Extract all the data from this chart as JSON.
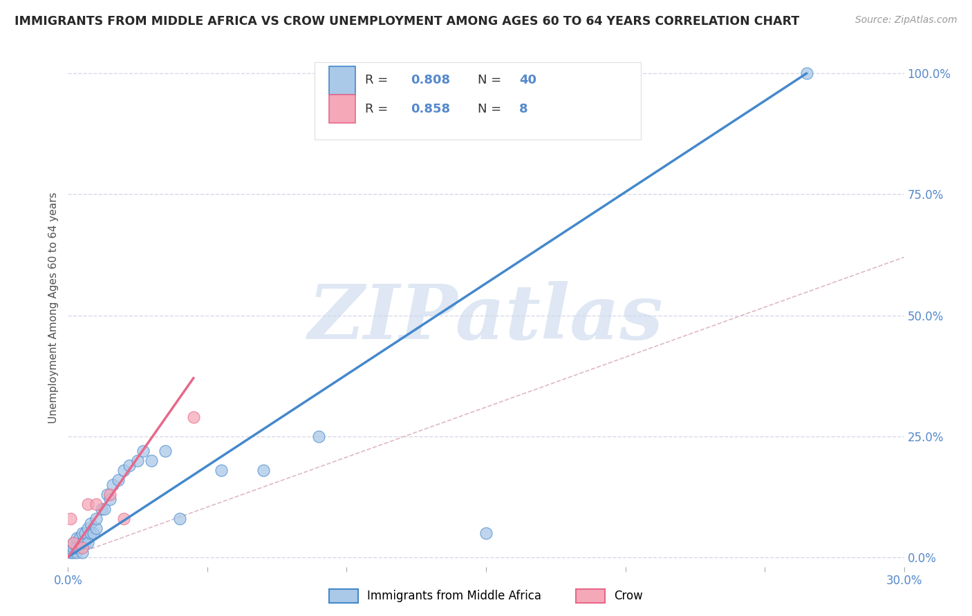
{
  "title": "IMMIGRANTS FROM MIDDLE AFRICA VS CROW UNEMPLOYMENT AMONG AGES 60 TO 64 YEARS CORRELATION CHART",
  "source": "Source: ZipAtlas.com",
  "ylabel": "Unemployment Among Ages 60 to 64 years",
  "watermark": "ZIPatlas",
  "xlim": [
    0.0,
    0.3
  ],
  "ylim": [
    -0.02,
    1.05
  ],
  "blue_scatter_x": [
    0.001,
    0.001,
    0.002,
    0.002,
    0.002,
    0.003,
    0.003,
    0.003,
    0.004,
    0.004,
    0.005,
    0.005,
    0.005,
    0.006,
    0.006,
    0.007,
    0.007,
    0.008,
    0.008,
    0.009,
    0.01,
    0.01,
    0.012,
    0.013,
    0.014,
    0.015,
    0.016,
    0.018,
    0.02,
    0.022,
    0.025,
    0.027,
    0.03,
    0.035,
    0.04,
    0.055,
    0.07,
    0.09,
    0.15,
    0.265
  ],
  "blue_scatter_y": [
    0.01,
    0.02,
    0.01,
    0.02,
    0.03,
    0.01,
    0.02,
    0.04,
    0.02,
    0.04,
    0.01,
    0.03,
    0.05,
    0.03,
    0.05,
    0.03,
    0.06,
    0.05,
    0.07,
    0.05,
    0.06,
    0.08,
    0.1,
    0.1,
    0.13,
    0.12,
    0.15,
    0.16,
    0.18,
    0.19,
    0.2,
    0.22,
    0.2,
    0.22,
    0.08,
    0.18,
    0.18,
    0.25,
    0.05,
    1.0
  ],
  "pink_scatter_x": [
    0.001,
    0.002,
    0.005,
    0.007,
    0.01,
    0.015,
    0.02,
    0.045
  ],
  "pink_scatter_y": [
    0.08,
    0.03,
    0.02,
    0.11,
    0.11,
    0.13,
    0.08,
    0.29
  ],
  "blue_line_x": [
    0.0,
    0.265
  ],
  "blue_line_y": [
    0.0,
    1.0
  ],
  "pink_line_x": [
    0.0,
    0.045
  ],
  "pink_line_y": [
    0.0,
    0.37
  ],
  "ref_line_x": [
    0.0,
    0.3
  ],
  "ref_line_y": [
    0.0,
    0.62
  ],
  "scatter_color_blue": "#aac8e8",
  "scatter_color_pink": "#f4a8b8",
  "line_color_blue": "#4488cc",
  "line_color_pink": "#e8688a",
  "ref_line_color": "#e0b8c0",
  "background_color": "#ffffff",
  "grid_color": "#d8d8e8",
  "title_color": "#282828",
  "axis_label_color": "#505050",
  "tick_color": "#5588cc",
  "watermark_color": "#c8d8ec",
  "legend_entries": [
    {
      "label": "Immigrants from Middle Africa",
      "color_fill": "#aac8e8",
      "color_edge": "#4488cc",
      "R": 0.808,
      "N": 40
    },
    {
      "label": "Crow",
      "color_fill": "#f4a8b8",
      "color_edge": "#e8688a",
      "R": 0.858,
      "N": 8
    }
  ],
  "right_yticks": [
    0.0,
    0.25,
    0.5,
    0.75,
    1.0
  ],
  "right_yticklabels": [
    "0.0%",
    "25.0%",
    "50.0%",
    "75.0%",
    "100.0%"
  ],
  "xticks": [
    0.0,
    0.05,
    0.1,
    0.15,
    0.2,
    0.25,
    0.3
  ],
  "xticklabels": [
    "0.0%",
    "",
    "",
    "",
    "",
    "",
    "30.0%"
  ],
  "bottom_legend": [
    {
      "label": "Immigrants from Middle Africa",
      "fill": "#aac8e8",
      "edge": "#4488cc"
    },
    {
      "label": "Crow",
      "fill": "#f4a8b8",
      "edge": "#e8688a"
    }
  ]
}
